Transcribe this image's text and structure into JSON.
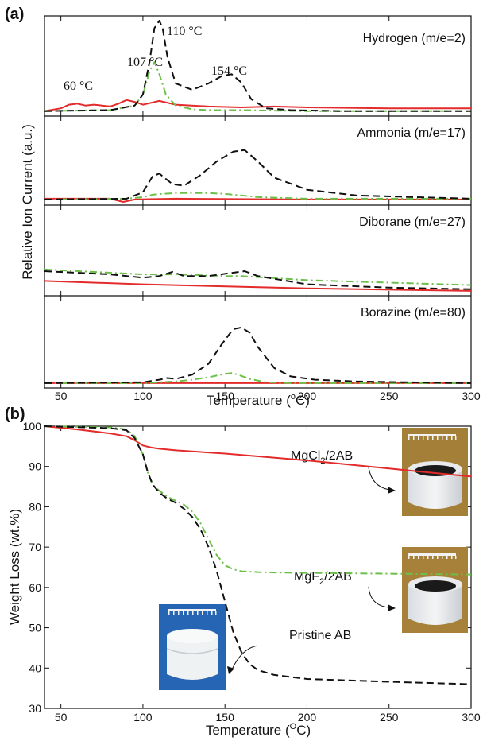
{
  "colors": {
    "red": "#e32b2b",
    "green": "#6cc04a",
    "black": "#111111",
    "photo_blue": "#2a6fc2",
    "photo_tan": "#b38a3e"
  },
  "chart_data": [
    {
      "panel_label": "(a)",
      "type": "line",
      "xlabel": "Temperature (°C)",
      "xlabel_main": "Temperature (",
      "xlabel_unit": "o",
      "xlabel_tail": "C)",
      "ylabel": "Relative Ion Current (a.u.)",
      "xlim": [
        40,
        300
      ],
      "xticks": [
        "50",
        "100",
        "150",
        "200",
        "250",
        "300"
      ],
      "line_styles": {
        "red": "solid",
        "green": "dash-dot",
        "black": "dashed"
      },
      "subplots": [
        {
          "label": "Hydrogen (m/e=2)",
          "annotations": [
            "60 °C",
            "107 °C",
            "110 °C",
            "154 °C"
          ],
          "series": [
            {
              "color": "red",
              "x": [
                40,
                50,
                55,
                60,
                65,
                70,
                75,
                80,
                85,
                90,
                95,
                100,
                110,
                120,
                140,
                160,
                180,
                200,
                250,
                300
              ],
              "y": [
                0.02,
                0.05,
                0.09,
                0.1,
                0.08,
                0.09,
                0.08,
                0.07,
                0.1,
                0.14,
                0.12,
                0.09,
                0.13,
                0.09,
                0.07,
                0.06,
                0.07,
                0.06,
                0.05,
                0.05
              ]
            },
            {
              "color": "green",
              "x": [
                40,
                80,
                95,
                100,
                104,
                107,
                110,
                114,
                120,
                130,
                140,
                160,
                200,
                250,
                300
              ],
              "y": [
                0.02,
                0.03,
                0.08,
                0.2,
                0.45,
                0.55,
                0.42,
                0.2,
                0.08,
                0.04,
                0.03,
                0.03,
                0.02,
                0.02,
                0.02
              ]
            },
            {
              "color": "black",
              "x": [
                40,
                80,
                95,
                100,
                104,
                107,
                110,
                112,
                115,
                120,
                130,
                140,
                148,
                154,
                160,
                166,
                175,
                190,
                220,
                300
              ],
              "y": [
                0.02,
                0.03,
                0.08,
                0.2,
                0.55,
                0.92,
                1.0,
                0.92,
                0.6,
                0.32,
                0.25,
                0.32,
                0.4,
                0.42,
                0.33,
                0.15,
                0.05,
                0.03,
                0.02,
                0.02
              ]
            }
          ]
        },
        {
          "label": "Ammonia (m/e=17)",
          "series": [
            {
              "color": "red",
              "x": [
                40,
                80,
                88,
                95,
                120,
                200,
                300
              ],
              "y": [
                0.04,
                0.04,
                0.0,
                0.03,
                0.04,
                0.03,
                0.03
              ]
            },
            {
              "color": "green",
              "x": [
                40,
                90,
                100,
                106,
                112,
                120,
                140,
                150,
                160,
                170,
                200,
                300
              ],
              "y": [
                0.03,
                0.04,
                0.06,
                0.09,
                0.1,
                0.11,
                0.11,
                0.1,
                0.08,
                0.06,
                0.04,
                0.04
              ]
            },
            {
              "color": "black",
              "x": [
                40,
                90,
                100,
                106,
                110,
                113,
                118,
                125,
                135,
                145,
                155,
                162,
                170,
                180,
                200,
                230,
                300
              ],
              "y": [
                0.03,
                0.04,
                0.12,
                0.32,
                0.35,
                0.3,
                0.22,
                0.2,
                0.33,
                0.5,
                0.62,
                0.64,
                0.5,
                0.3,
                0.15,
                0.08,
                0.04
              ]
            }
          ]
        },
        {
          "label": "Diborane (m/e=27)",
          "series": [
            {
              "color": "red",
              "x": [
                40,
                100,
                200,
                300
              ],
              "y": [
                0.14,
                0.1,
                0.05,
                0.02
              ]
            },
            {
              "color": "green",
              "x": [
                40,
                80,
                100,
                120,
                150,
                160,
                200,
                250,
                300
              ],
              "y": [
                0.28,
                0.24,
                0.22,
                0.22,
                0.2,
                0.2,
                0.15,
                0.12,
                0.09
              ]
            },
            {
              "color": "black",
              "x": [
                40,
                80,
                100,
                110,
                118,
                125,
                140,
                155,
                162,
                170,
                200,
                250,
                300
              ],
              "y": [
                0.26,
                0.22,
                0.18,
                0.2,
                0.25,
                0.2,
                0.2,
                0.24,
                0.26,
                0.2,
                0.1,
                0.06,
                0.04
              ]
            }
          ]
        },
        {
          "label": "Borazine (m/e=80)",
          "series": [
            {
              "color": "red",
              "x": [
                40,
                100,
                200,
                300
              ],
              "y": [
                0.02,
                0.02,
                0.02,
                0.02
              ]
            },
            {
              "color": "green",
              "x": [
                40,
                100,
                110,
                120,
                130,
                140,
                150,
                154,
                158,
                165,
                175,
                190,
                300
              ],
              "y": [
                0.02,
                0.02,
                0.03,
                0.04,
                0.06,
                0.09,
                0.13,
                0.14,
                0.12,
                0.07,
                0.03,
                0.02,
                0.02
              ]
            },
            {
              "color": "black",
              "x": [
                40,
                100,
                110,
                115,
                120,
                130,
                140,
                148,
                155,
                160,
                165,
                170,
                180,
                190,
                205,
                230,
                260,
                300
              ],
              "y": [
                0.02,
                0.03,
                0.06,
                0.08,
                0.07,
                0.12,
                0.25,
                0.48,
                0.66,
                0.68,
                0.62,
                0.45,
                0.2,
                0.1,
                0.06,
                0.04,
                0.03,
                0.02
              ]
            }
          ]
        }
      ]
    },
    {
      "panel_label": "(b)",
      "type": "line",
      "xlabel": "Temperature (°C)",
      "xlabel_main": "Temperature (",
      "xlabel_unit": "O",
      "xlabel_tail": "C)",
      "ylabel": "Weight Loss (wt.%)",
      "xlim": [
        40,
        300
      ],
      "ylim": [
        30,
        100
      ],
      "xticks": [
        "50",
        "100",
        "150",
        "200",
        "250",
        "300"
      ],
      "yticks": [
        "30",
        "40",
        "50",
        "60",
        "70",
        "80",
        "90",
        "100"
      ],
      "labels": {
        "mgcl2": {
          "pre": "MgCl",
          "sub": "2",
          "post": "/2AB"
        },
        "mgf2": {
          "pre": "MgF",
          "sub": "2",
          "post": "/2AB"
        },
        "pristine": {
          "text": "Pristine AB"
        }
      },
      "series": [
        {
          "name": "MgCl2/2AB",
          "color": "red",
          "style": "solid",
          "x": [
            40,
            60,
            80,
            90,
            95,
            100,
            105,
            110,
            120,
            150,
            200,
            250,
            300
          ],
          "y": [
            100,
            99.2,
            98.2,
            97.5,
            96.5,
            95.2,
            94.7,
            94.4,
            94.0,
            93.2,
            91.5,
            89.5,
            87.5
          ]
        },
        {
          "name": "MgF2/2AB",
          "color": "green",
          "style": "dash-dot",
          "x": [
            40,
            80,
            90,
            95,
            100,
            103,
            106,
            110,
            115,
            120,
            125,
            130,
            135,
            140,
            145,
            150,
            155,
            160,
            170,
            180,
            200,
            250,
            300
          ],
          "y": [
            100,
            99.7,
            99.2,
            97.5,
            93.0,
            88.5,
            85.3,
            84.0,
            82.5,
            81.5,
            80.5,
            78.8,
            76.0,
            72.0,
            68.0,
            65.5,
            64.5,
            64.0,
            63.8,
            63.7,
            63.6,
            63.4,
            63.2
          ]
        },
        {
          "name": "Pristine AB",
          "color": "black",
          "style": "dashed",
          "x": [
            40,
            80,
            90,
            95,
            100,
            103,
            106,
            110,
            115,
            120,
            125,
            130,
            135,
            140,
            145,
            150,
            155,
            160,
            165,
            170,
            180,
            200,
            250,
            300
          ],
          "y": [
            100,
            99.5,
            99.0,
            97.0,
            93.0,
            88.5,
            85.5,
            83.5,
            82.0,
            81.0,
            79.5,
            77.5,
            74.5,
            70.0,
            64.0,
            56.5,
            49.0,
            44.0,
            41.0,
            39.5,
            38.3,
            37.3,
            36.6,
            36.0
          ]
        }
      ]
    }
  ]
}
